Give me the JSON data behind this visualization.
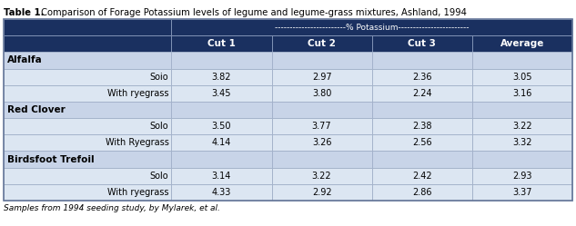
{
  "title_bold": "Table 1.",
  "title_rest": " Comparison of Forage Potassium levels of legume and legume-grass mixtures, Ashland, 1994",
  "footnote": "Samples from 1994 seeding study, by Mylarek, et al.",
  "header_bg": "#1a3060",
  "subheader_text": "------------------------% Potassium------------------------",
  "col_headers": [
    "Cut 1",
    "Cut 2",
    "Cut 3",
    "Average"
  ],
  "section_bg": "#c8d4e8",
  "data_row_bg": "#dce6f2",
  "border_color": "#8899bb",
  "inner_border_color": "#a0afc8",
  "section_rows": [
    {
      "label": "Alfalfa",
      "is_section": true
    },
    {
      "label": "Soio",
      "is_section": false,
      "values": [
        "3.82",
        "2.97",
        "2.36",
        "3.05"
      ]
    },
    {
      "label": "With ryegrass",
      "is_section": false,
      "values": [
        "3.45",
        "3.80",
        "2.24",
        "3.16"
      ]
    },
    {
      "label": "Red Clover",
      "is_section": true
    },
    {
      "label": "Solo",
      "is_section": false,
      "values": [
        "3.50",
        "3.77",
        "2.38",
        "3.22"
      ]
    },
    {
      "label": "With Ryegrass",
      "is_section": false,
      "values": [
        "4.14",
        "3.26",
        "2.56",
        "3.32"
      ]
    },
    {
      "label": "Birdsfoot Trefoil",
      "is_section": true
    },
    {
      "label": "Solo",
      "is_section": false,
      "values": [
        "3.14",
        "3.22",
        "2.42",
        "2.93"
      ]
    },
    {
      "label": "With ryegrass",
      "is_section": false,
      "values": [
        "4.33",
        "2.92",
        "2.86",
        "3.37"
      ]
    }
  ]
}
